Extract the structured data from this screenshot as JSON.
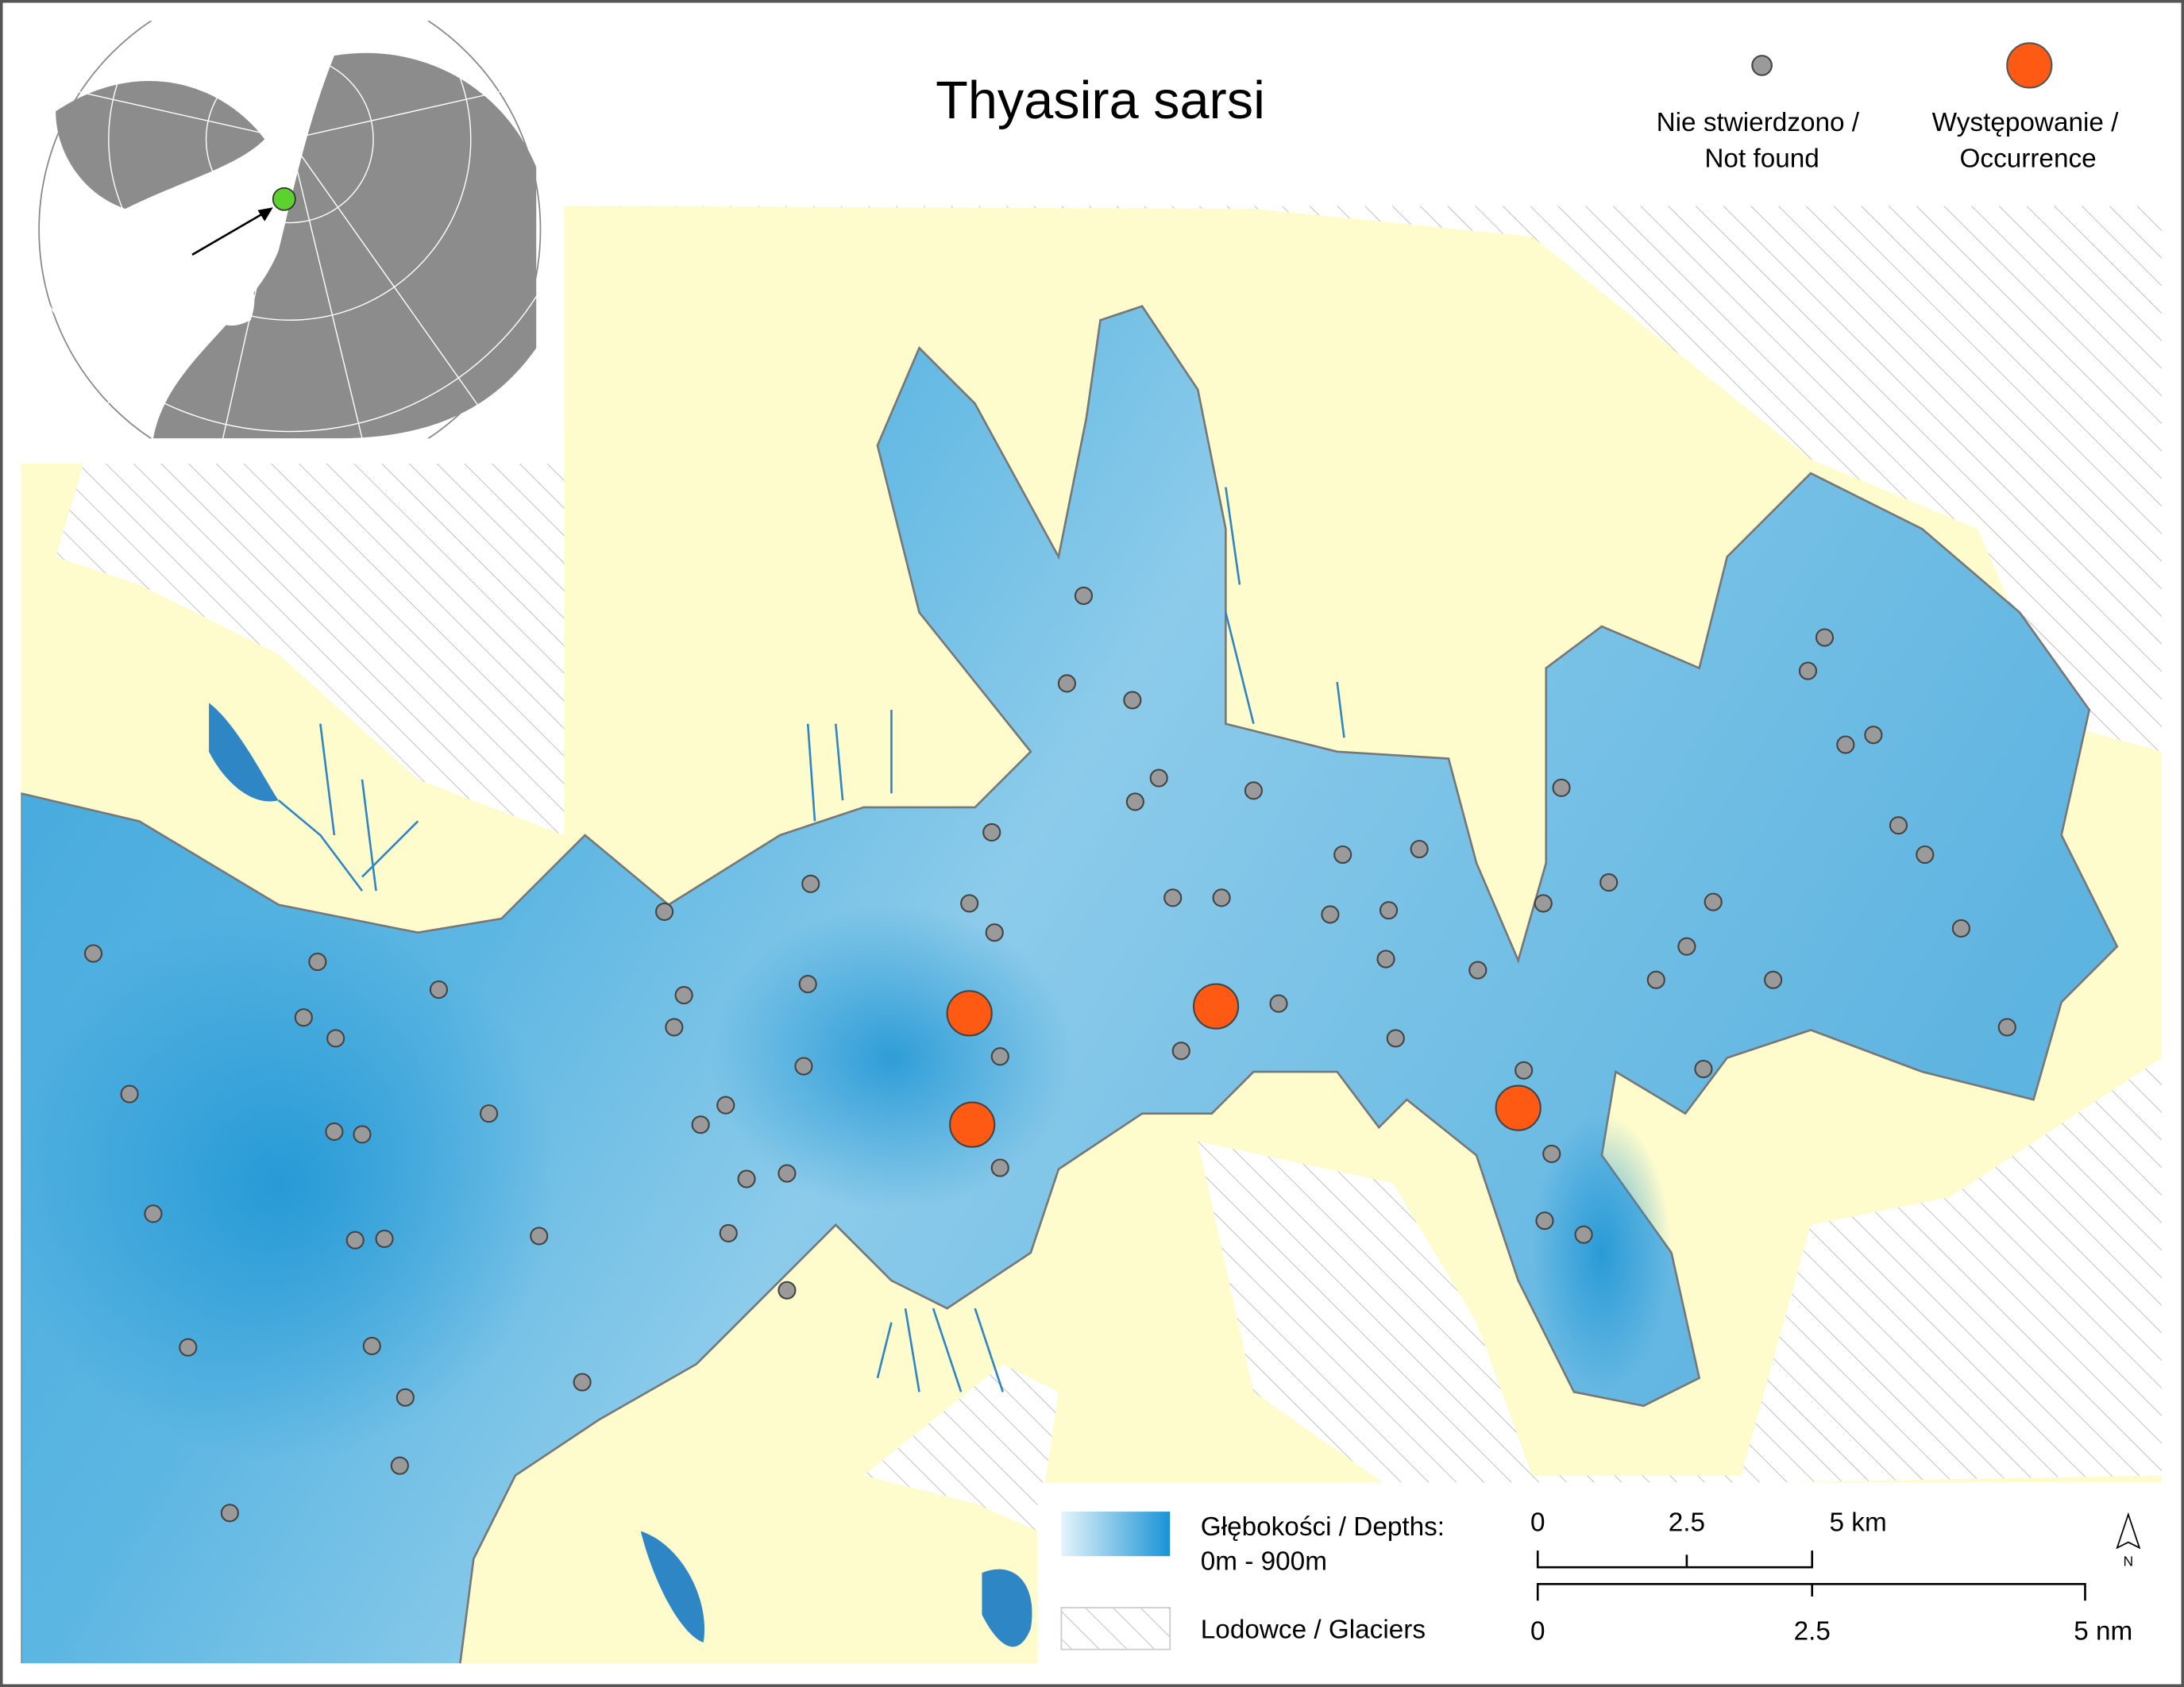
{
  "title": "Thyasira sarsi",
  "legend": {
    "not_found": [
      "Nie stwierdzono /",
      "Not found"
    ],
    "occurrence": [
      "Występowanie /",
      "Occurrence"
    ],
    "depths": [
      "Głębokości / Depths:",
      "0m - 900m"
    ],
    "glaciers": "Lodowce / Glaciers"
  },
  "scale_bar": {
    "km": [
      "0",
      "2.5",
      "5 km"
    ],
    "nm": [
      "0",
      "2.5",
      "5 nm"
    ]
  },
  "north_arrow": "N"
}
